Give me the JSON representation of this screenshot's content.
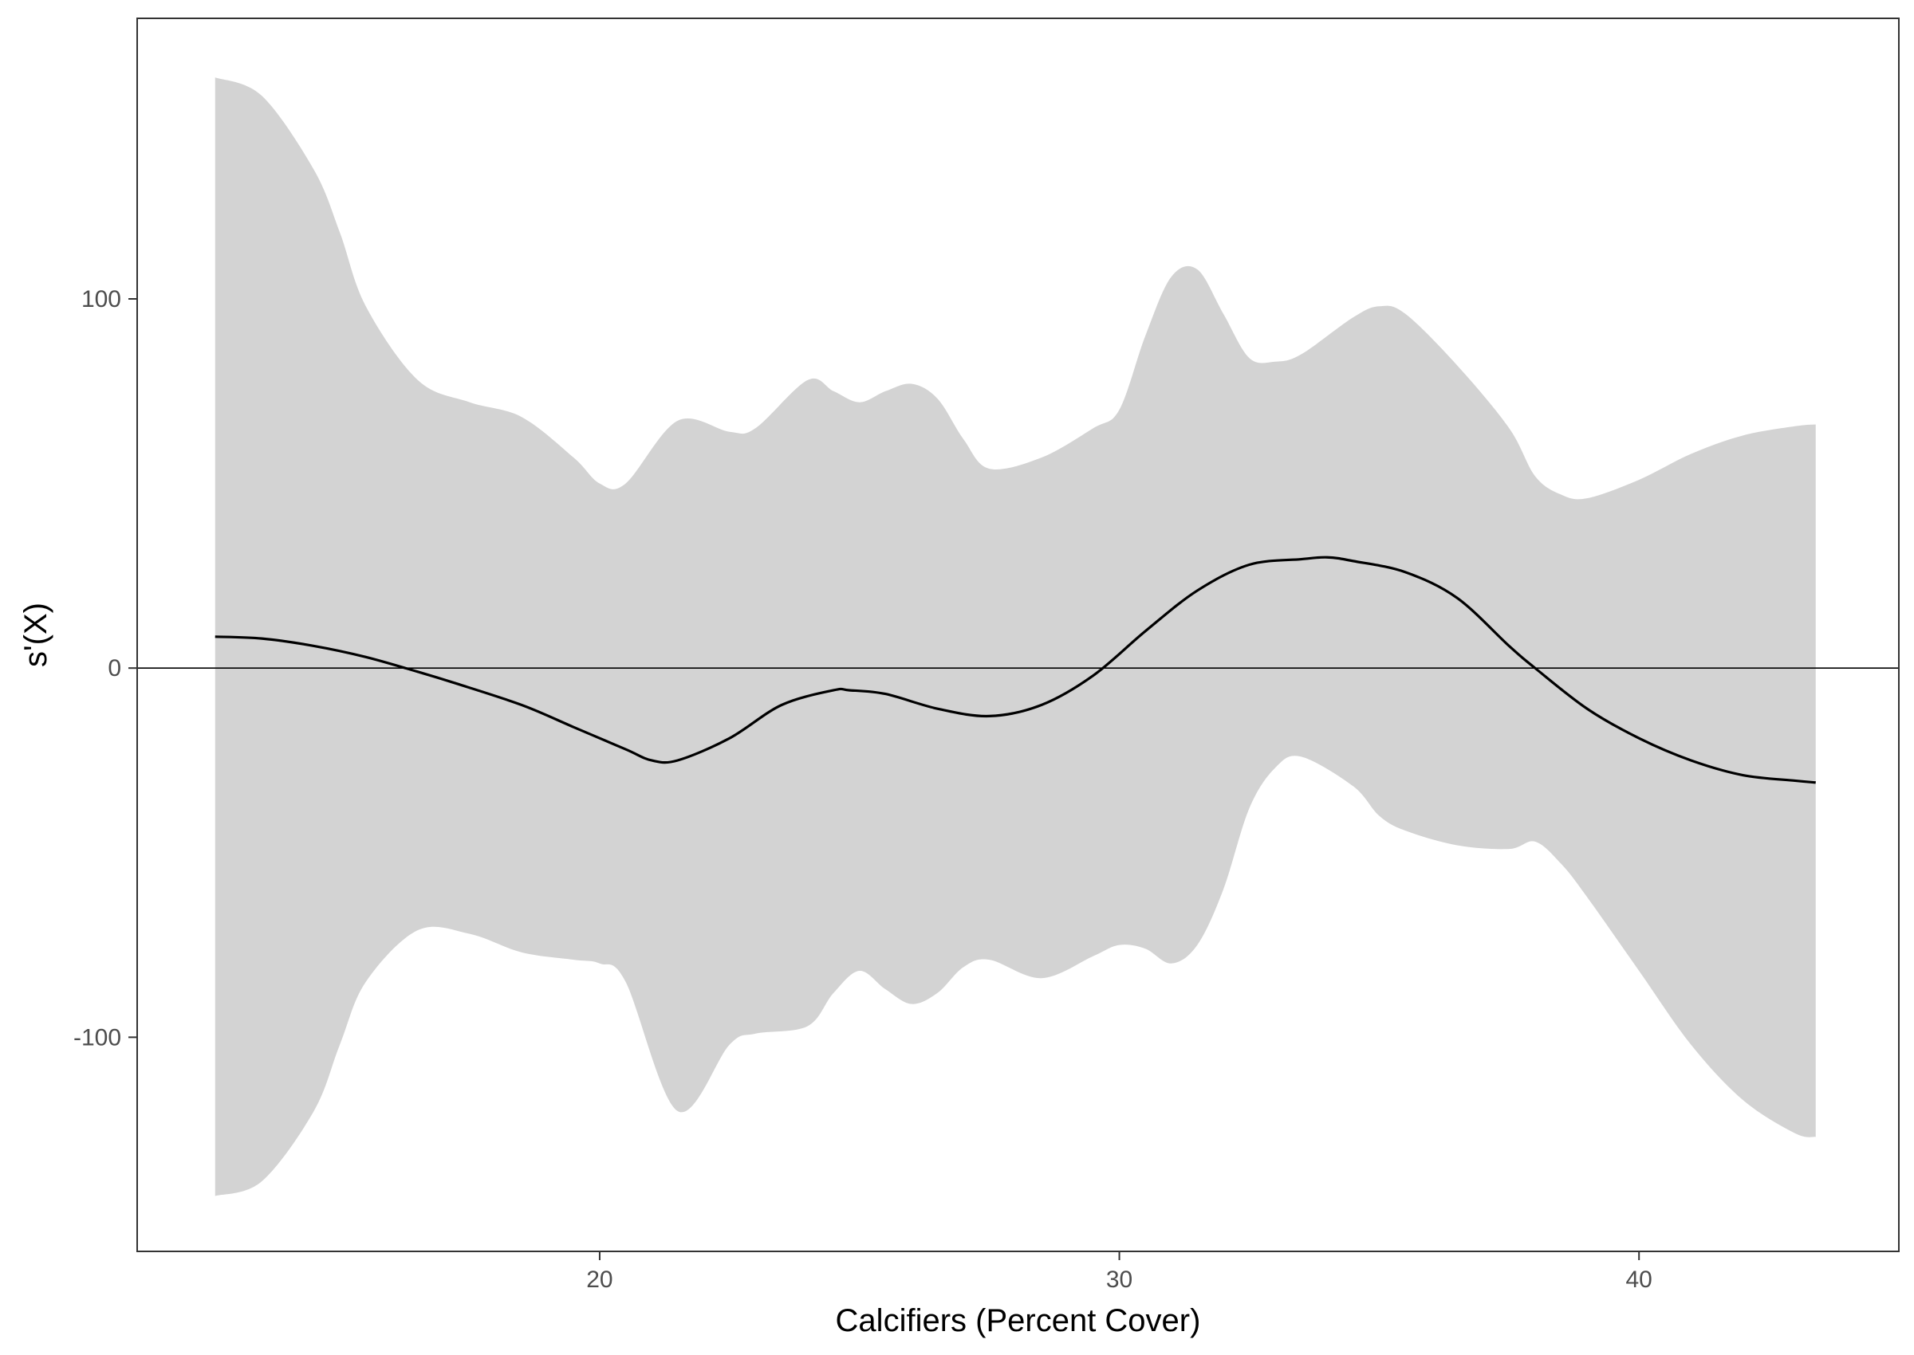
{
  "chart_data": {
    "type": "line",
    "title": "",
    "xlabel": "Calcifiers (Percent Cover)",
    "ylabel": "s'(X)",
    "xlim": [
      11.1,
      45.0
    ],
    "ylim": [
      -158,
      176
    ],
    "x_ticks": [
      20,
      30,
      40
    ],
    "y_ticks": [
      -100,
      0,
      100
    ],
    "x_tick_labels": [
      "20",
      "30",
      "40"
    ],
    "y_tick_labels": [
      "-100",
      "0",
      "100"
    ],
    "grid": false,
    "legend": "none",
    "reference_line": {
      "y": 0
    },
    "colors": {
      "line": "#000000",
      "band": "#d3d3d3",
      "frame": "#333333",
      "ticks": "#333333"
    },
    "series": [
      {
        "x": [
          12.6,
          13.5,
          14.5,
          15.5,
          16.5,
          17.2,
          18.5,
          19.5,
          20.5,
          21.0,
          21.5,
          22.5,
          23.5,
          24.5,
          24.8,
          25.5,
          26.5,
          27.5,
          28.5,
          29.5,
          30.5,
          31.5,
          32.5,
          33.5,
          34.0,
          34.5,
          35.5,
          36.5,
          37.5,
          38.0,
          39.0,
          40.0,
          41.0,
          42.0,
          43.0,
          43.4
        ],
        "y": [
          8.5,
          8,
          6,
          3,
          -1,
          -4,
          -10,
          -16,
          -22,
          -25,
          -25,
          -19,
          -10,
          -6,
          -6,
          -7,
          -11,
          -13,
          -10,
          -2,
          10,
          21,
          28,
          29.5,
          30,
          29,
          26,
          19,
          6,
          0,
          -11,
          -19,
          -25,
          -29,
          -30.5,
          -31
        ]
      }
    ],
    "confidence_band": {
      "x": [
        12.6,
        13.5,
        14.5,
        15.0,
        15.5,
        16.5,
        17.5,
        18.5,
        19.5,
        20.0,
        20.5,
        21.5,
        22.5,
        23.0,
        24.0,
        24.5,
        25.0,
        25.5,
        26.0,
        26.5,
        27.0,
        27.5,
        28.5,
        29.5,
        30.0,
        30.5,
        31.0,
        31.5,
        32.0,
        32.5,
        33.0,
        33.5,
        34.5,
        35.0,
        35.5,
        36.5,
        37.5,
        38.0,
        38.5,
        39.0,
        40.0,
        41.0,
        42.0,
        43.0,
        43.4
      ],
      "upper": [
        160,
        155,
        135,
        118,
        98,
        78,
        72,
        68,
        57,
        50,
        50,
        67,
        64,
        65,
        78,
        75,
        72,
        75,
        77,
        73,
        62,
        54,
        57,
        65,
        70,
        90,
        106,
        108,
        96,
        84,
        83,
        85,
        95,
        98,
        96,
        82,
        65,
        52,
        47,
        46,
        51,
        58,
        63,
        65.5,
        66
      ],
      "lower": [
        -143,
        -139,
        -120,
        -102,
        -85,
        -71,
        -72,
        -77,
        -79,
        -80,
        -85,
        -120,
        -102,
        -99,
        -97,
        -88,
        -82,
        -87,
        -91,
        -88,
        -81,
        -79,
        -84,
        -78,
        -75,
        -76,
        -80,
        -75,
        -60,
        -38,
        -27,
        -24,
        -32,
        -40,
        -44,
        -48,
        -49,
        -47,
        -53,
        -62,
        -82,
        -102,
        -117,
        -126,
        -127
      ]
    }
  }
}
